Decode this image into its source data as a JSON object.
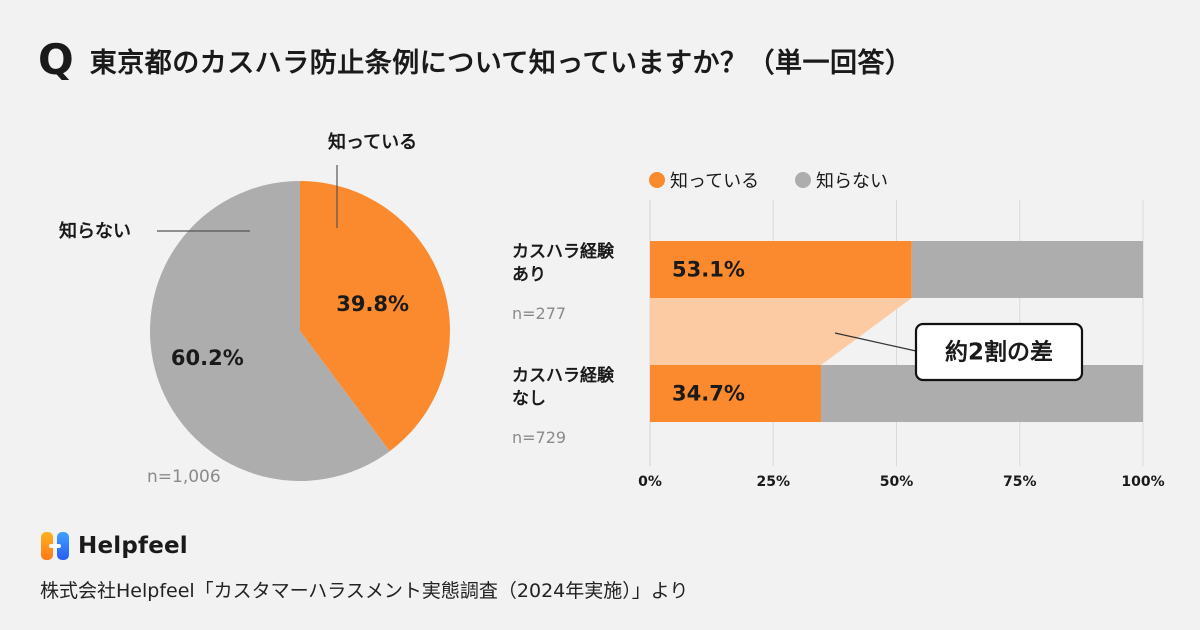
{
  "title": {
    "q": "Q",
    "text": "東京都のカスハラ防止条例について知っていますか？（単一回答）"
  },
  "colors": {
    "known": "#fb8a2e",
    "unknown": "#adadad",
    "band": "#fccba4",
    "text": "#1a1a1a",
    "muted": "#8a8a8a"
  },
  "chart_data": [
    {
      "type": "pie",
      "title": "東京都のカスハラ防止条例について知っていますか？（単一回答）",
      "slices": [
        {
          "label": "知っている",
          "value": 39.8,
          "value_label": "39.8%"
        },
        {
          "label": "知らない",
          "value": 60.2,
          "value_label": "60.2%"
        }
      ],
      "n_label": "n=1,006"
    },
    {
      "type": "bar",
      "orientation": "horizontal",
      "stacked": true,
      "legend": [
        "知っている",
        "知らない"
      ],
      "legend_position": "top",
      "categories": [
        {
          "name_lines": [
            "カスハラ経験",
            "あり"
          ],
          "n_label": "n=277"
        },
        {
          "name_lines": [
            "カスハラ経験",
            "なし"
          ],
          "n_label": "n=729"
        }
      ],
      "series": [
        {
          "name": "知っている",
          "values": [
            53.1,
            34.7
          ],
          "value_labels": [
            "53.1%",
            "34.7%"
          ]
        },
        {
          "name": "知らない",
          "values": [
            46.9,
            65.3
          ]
        }
      ],
      "xlim": [
        0,
        100
      ],
      "x_ticks": [
        0,
        25,
        50,
        75,
        100
      ],
      "x_tick_labels": [
        "0%",
        "25%",
        "50%",
        "75%",
        "100%"
      ],
      "grid": true,
      "annotation": "約2割の差"
    }
  ],
  "footer": {
    "brand": "Helpfeel",
    "source": "株式会社Helpfeel「カスタマーハラスメント実態調査（2024年実施）」より"
  }
}
